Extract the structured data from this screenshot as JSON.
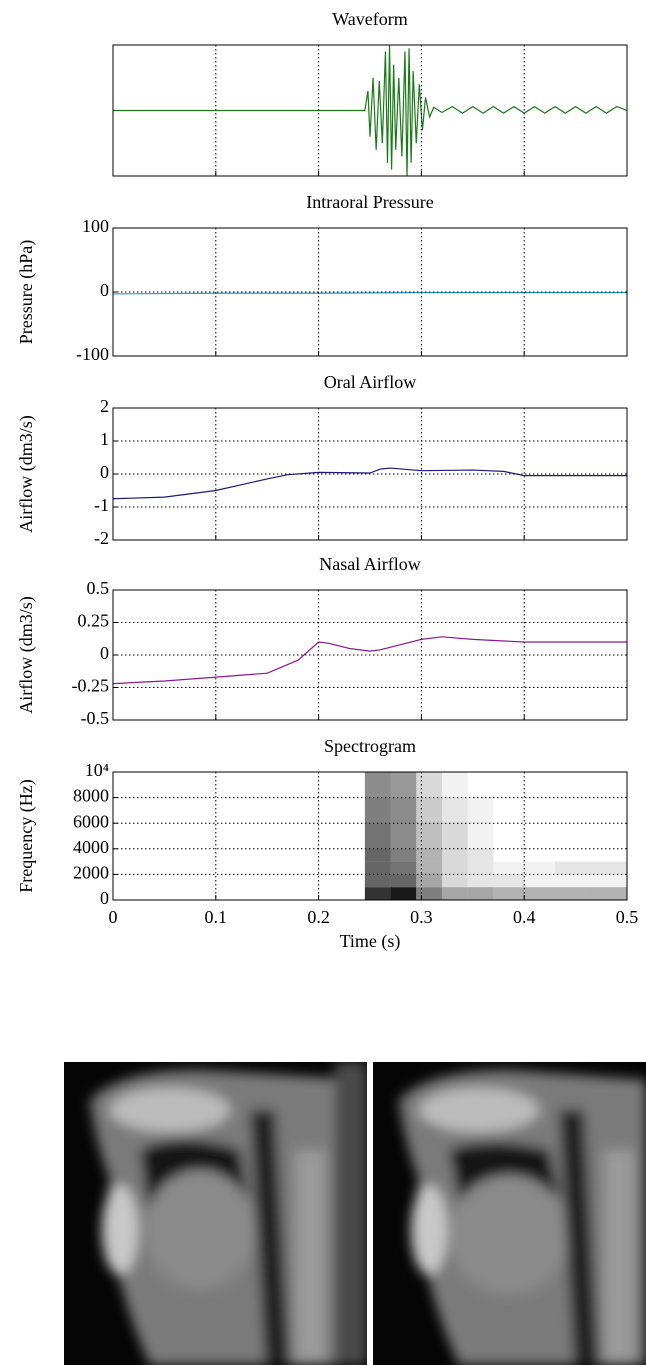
{
  "chart_data": [
    {
      "type": "line",
      "title": "Waveform",
      "x": [
        0,
        0.245,
        0.248,
        0.25,
        0.253,
        0.256,
        0.259,
        0.262,
        0.265,
        0.267,
        0.269,
        0.271,
        0.273,
        0.275,
        0.278,
        0.281,
        0.284,
        0.286,
        0.288,
        0.29,
        0.292,
        0.295,
        0.298,
        0.301,
        0.304,
        0.308,
        0.312,
        0.32,
        0.33,
        0.34,
        0.35,
        0.36,
        0.37,
        0.38,
        0.39,
        0.4,
        0.41,
        0.42,
        0.43,
        0.44,
        0.45,
        0.46,
        0.47,
        0.48,
        0.49,
        0.5
      ],
      "series": [
        {
          "color": "#1a7a1a",
          "values": [
            0,
            0,
            0.3,
            -0.4,
            0.5,
            -0.6,
            0.45,
            -0.5,
            0.9,
            -0.8,
            1.0,
            -0.9,
            0.7,
            -0.6,
            0.5,
            -0.7,
            0.9,
            -1.0,
            0.95,
            -0.8,
            0.6,
            -0.5,
            0.4,
            -0.3,
            0.2,
            -0.1,
            0.05,
            -0.03,
            0.06,
            -0.04,
            0.06,
            -0.04,
            0.06,
            -0.04,
            0.06,
            -0.04,
            0.06,
            -0.04,
            0.06,
            -0.04,
            0.06,
            -0.04,
            0.06,
            -0.04,
            0.06,
            0
          ]
        }
      ],
      "ylim": [
        -1,
        1
      ],
      "xlim": [
        0,
        0.5
      ],
      "xticks": [
        0,
        0.1,
        0.2,
        0.3,
        0.4,
        0.5
      ],
      "show_xtick_labels": false,
      "grid": true
    },
    {
      "type": "line",
      "title": "Intraoral Pressure",
      "ylabel": "Pressure (hPa)",
      "x": [
        0,
        0.1,
        0.2,
        0.3,
        0.4,
        0.5
      ],
      "series": [
        {
          "color": "#2a9fd6",
          "values": [
            -3,
            -2,
            -2,
            -1,
            -1,
            -1
          ]
        }
      ],
      "ylim": [
        -100,
        100
      ],
      "yticks": [
        -100,
        0,
        100
      ],
      "xlim": [
        0,
        0.5
      ],
      "xticks": [
        0,
        0.1,
        0.2,
        0.3,
        0.4,
        0.5
      ],
      "show_xtick_labels": false,
      "grid": true
    },
    {
      "type": "line",
      "title": "Oral Airflow",
      "ylabel": "Airflow (dm3/s)",
      "x": [
        0,
        0.05,
        0.1,
        0.15,
        0.17,
        0.2,
        0.25,
        0.26,
        0.27,
        0.3,
        0.35,
        0.38,
        0.4,
        0.45,
        0.5
      ],
      "series": [
        {
          "color": "#1a1a7a",
          "values": [
            -0.75,
            -0.7,
            -0.5,
            -0.15,
            -0.02,
            0.05,
            0.03,
            0.15,
            0.18,
            0.1,
            0.12,
            0.08,
            -0.05,
            -0.05,
            -0.05
          ]
        }
      ],
      "ylim": [
        -2,
        2
      ],
      "yticks": [
        -2,
        -1,
        0,
        1,
        2
      ],
      "xlim": [
        0,
        0.5
      ],
      "xticks": [
        0,
        0.1,
        0.2,
        0.3,
        0.4,
        0.5
      ],
      "show_xtick_labels": false,
      "grid": true
    },
    {
      "type": "line",
      "title": "Nasal Airflow",
      "ylabel": "Airflow (dm3/s)",
      "x": [
        0,
        0.05,
        0.1,
        0.15,
        0.18,
        0.2,
        0.21,
        0.23,
        0.25,
        0.26,
        0.28,
        0.3,
        0.32,
        0.35,
        0.4,
        0.45,
        0.5
      ],
      "series": [
        {
          "color": "#8b1a8b",
          "values": [
            -0.22,
            -0.2,
            -0.17,
            -0.14,
            -0.04,
            0.1,
            0.09,
            0.05,
            0.03,
            0.04,
            0.08,
            0.12,
            0.14,
            0.12,
            0.1,
            0.1,
            0.1
          ]
        }
      ],
      "ylim": [
        -0.5,
        0.5
      ],
      "yticks": [
        -0.5,
        -0.25,
        0,
        0.25,
        0.5
      ],
      "xlim": [
        0,
        0.5
      ],
      "xticks": [
        0,
        0.1,
        0.2,
        0.3,
        0.4,
        0.5
      ],
      "show_xtick_labels": false,
      "grid": true
    },
    {
      "type": "heatmap",
      "title": "Spectrogram",
      "ylabel": "Frequency (Hz)",
      "xlabel": "Time (s)",
      "color": "#000000",
      "x_edges": [
        0.245,
        0.27,
        0.295,
        0.32,
        0.345,
        0.37,
        0.4,
        0.43,
        0.46,
        0.5
      ],
      "y_edges": [
        0,
        1000,
        2000,
        3000,
        4000,
        6000,
        8000,
        10000
      ],
      "intensity": [
        [
          0.8,
          0.9,
          0.5,
          0.35,
          0.35,
          0.3,
          0.3,
          0.3,
          0.3
        ],
        [
          0.6,
          0.6,
          0.35,
          0.15,
          0.1,
          0.1,
          0.05,
          0.05,
          0.05
        ],
        [
          0.6,
          0.55,
          0.3,
          0.15,
          0.1,
          0.05,
          0.05,
          0.1,
          0.1
        ],
        [
          0.6,
          0.5,
          0.3,
          0.15,
          0.1,
          0,
          0,
          0,
          0
        ],
        [
          0.55,
          0.45,
          0.25,
          0.15,
          0.05,
          0,
          0,
          0,
          0
        ],
        [
          0.5,
          0.45,
          0.2,
          0.1,
          0.05,
          0,
          0,
          0,
          0
        ],
        [
          0.45,
          0.4,
          0.15,
          0.05,
          0,
          0,
          0,
          0,
          0
        ]
      ],
      "ylim": [
        0,
        10000
      ],
      "yticks": [
        0,
        2000,
        4000,
        6000,
        8000,
        {
          "value": 10000,
          "label": "10⁴"
        }
      ],
      "xlim": [
        0,
        0.5
      ],
      "xticks": [
        0,
        0.1,
        0.2,
        0.3,
        0.4,
        0.5
      ],
      "show_xtick_labels": true,
      "grid": true
    }
  ]
}
